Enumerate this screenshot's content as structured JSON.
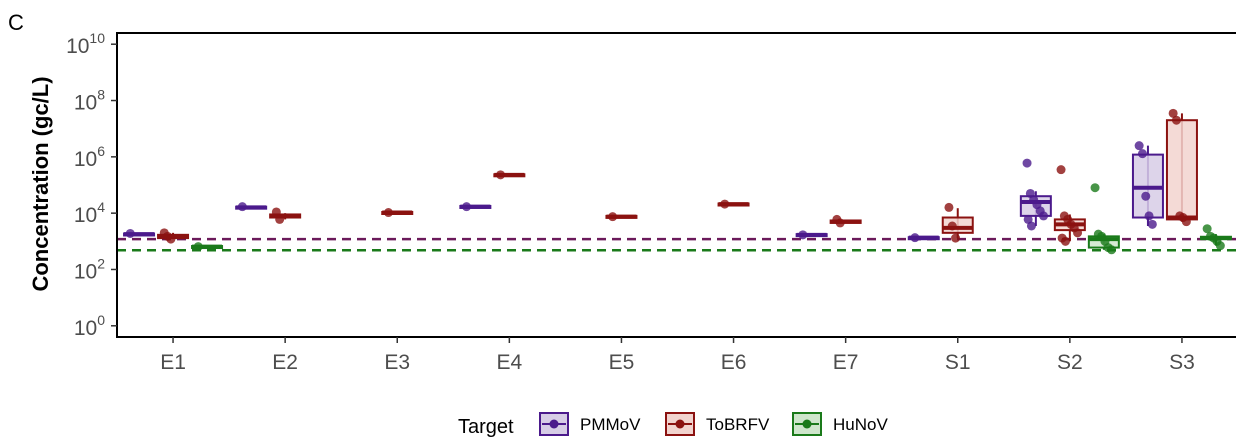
{
  "panel_letter": "C",
  "chart_data": {
    "type": "box",
    "title": "",
    "xlabel": "",
    "ylabel": "Concentration (gc/L)",
    "y_scale": "log10",
    "ylim": [
      0.4,
      25000000000
    ],
    "y_ticks": [
      {
        "value": 1,
        "base": "10",
        "exp": "0"
      },
      {
        "value": 100,
        "base": "10",
        "exp": "2"
      },
      {
        "value": 10000,
        "base": "10",
        "exp": "4"
      },
      {
        "value": 1000000,
        "base": "10",
        "exp": "6"
      },
      {
        "value": 100000000,
        "base": "10",
        "exp": "8"
      },
      {
        "value": 10000000000,
        "base": "10",
        "exp": "10"
      }
    ],
    "categories": [
      "E1",
      "E2",
      "E3",
      "E4",
      "E5",
      "E6",
      "E7",
      "S1",
      "S2",
      "S3"
    ],
    "grid": false,
    "legend": {
      "title": "Target",
      "position": "bottom"
    },
    "series": [
      {
        "name": "PMMoV",
        "color": "#4b1a8c",
        "fill": "#d7cde6",
        "groups": [
          {
            "category": "E1",
            "box": {
              "q1": 1700,
              "median": 1800,
              "q3": 1900,
              "lower": 1700,
              "upper": 1900
            },
            "points": [
              1900
            ]
          },
          {
            "category": "E2",
            "box": {
              "q1": 15000,
              "median": 16000,
              "q3": 17000,
              "lower": 15000,
              "upper": 17000
            },
            "points": [
              17000
            ]
          },
          {
            "category": "E4",
            "box": {
              "q1": 16000,
              "median": 17000,
              "q3": 18000,
              "lower": 16000,
              "upper": 18000
            },
            "points": [
              17000
            ]
          },
          {
            "category": "E7",
            "box": {
              "q1": 1600,
              "median": 1700,
              "q3": 1800,
              "lower": 1600,
              "upper": 1800
            },
            "points": [
              1700
            ]
          },
          {
            "category": "S1",
            "box": {
              "q1": 1300,
              "median": 1350,
              "q3": 1400,
              "lower": 1300,
              "upper": 1400
            },
            "points": [
              1350
            ]
          },
          {
            "category": "S2",
            "box": {
              "q1": 8000,
              "median": 25000,
              "q3": 40000,
              "lower": 3500,
              "upper": 60000
            },
            "points": [
              600000,
              50000,
              30000,
              20000,
              12000,
              8000,
              6000,
              3500
            ]
          },
          {
            "category": "S3",
            "box": {
              "q1": 7000,
              "median": 80000,
              "q3": 1200000,
              "lower": 3500,
              "upper": 2500000
            },
            "points": [
              2500000,
              1300000,
              40000,
              8000,
              4000
            ]
          }
        ]
      },
      {
        "name": "ToBRFV",
        "color": "#8b1210",
        "fill": "#f2d4cf",
        "groups": [
          {
            "category": "E1",
            "box": {
              "q1": 1300,
              "median": 1500,
              "q3": 1700,
              "lower": 1200,
              "upper": 2000
            },
            "points": [
              2000,
              1500,
              1200
            ]
          },
          {
            "category": "E2",
            "box": {
              "q1": 7000,
              "median": 8000,
              "q3": 9000,
              "lower": 6000,
              "upper": 10000
            },
            "points": [
              11000,
              6000
            ]
          },
          {
            "category": "E3",
            "box": {
              "q1": 10000,
              "median": 10500,
              "q3": 11000,
              "lower": 10000,
              "upper": 11000
            },
            "points": [
              10500
            ]
          },
          {
            "category": "E4",
            "box": {
              "q1": 220000,
              "median": 230000,
              "q3": 240000,
              "lower": 220000,
              "upper": 240000
            },
            "points": [
              230000
            ]
          },
          {
            "category": "E5",
            "box": {
              "q1": 7000,
              "median": 7500,
              "q3": 8000,
              "lower": 7000,
              "upper": 8000
            },
            "points": [
              7500
            ]
          },
          {
            "category": "E6",
            "box": {
              "q1": 20000,
              "median": 21000,
              "q3": 22000,
              "lower": 20000,
              "upper": 22000
            },
            "points": [
              21000
            ]
          },
          {
            "category": "E7",
            "box": {
              "q1": 4500,
              "median": 5000,
              "q3": 5500,
              "lower": 4500,
              "upper": 5500
            },
            "points": [
              6000,
              4500
            ]
          },
          {
            "category": "S1",
            "box": {
              "q1": 2000,
              "median": 3000,
              "q3": 7000,
              "lower": 1300,
              "upper": 15000
            },
            "points": [
              16000,
              3500,
              1300
            ]
          },
          {
            "category": "S2",
            "box": {
              "q1": 2500,
              "median": 4000,
              "q3": 6000,
              "lower": 1000,
              "upper": 9000
            },
            "points": [
              350000,
              8000,
              6000,
              4000,
              3000,
              2000,
              1300,
              1000
            ]
          },
          {
            "category": "S3",
            "box": {
              "q1": 6000,
              "median": 7000,
              "q3": 20000000,
              "lower": 5000,
              "upper": 35000000
            },
            "points": [
              35000000,
              20000000,
              8000,
              7000,
              5000
            ]
          }
        ]
      },
      {
        "name": "HuNoV",
        "color": "#1a7a1a",
        "fill": "#cfe6cc",
        "groups": [
          {
            "category": "E1",
            "box": {
              "q1": 620,
              "median": 650,
              "q3": 680,
              "lower": 620,
              "upper": 680
            },
            "points": [
              650
            ]
          },
          {
            "category": "S2",
            "box": {
              "q1": 600,
              "median": 1200,
              "q3": 1500,
              "lower": 500,
              "upper": 1800
            },
            "points": [
              80000,
              1800,
              1500,
              1000,
              600,
              500
            ]
          },
          {
            "category": "S3",
            "box": {
              "q1": 1200,
              "median": 1300,
              "q3": 1450,
              "lower": 700,
              "upper": 1800
            },
            "points": [
              2800,
              1500,
              1300,
              1000,
              700
            ]
          }
        ]
      }
    ],
    "reference_lines": [
      {
        "value": 1200,
        "color": "#6b1a5a",
        "style": "dashed"
      },
      {
        "value": 480,
        "color": "#1a7a1a",
        "style": "dashed"
      }
    ]
  }
}
